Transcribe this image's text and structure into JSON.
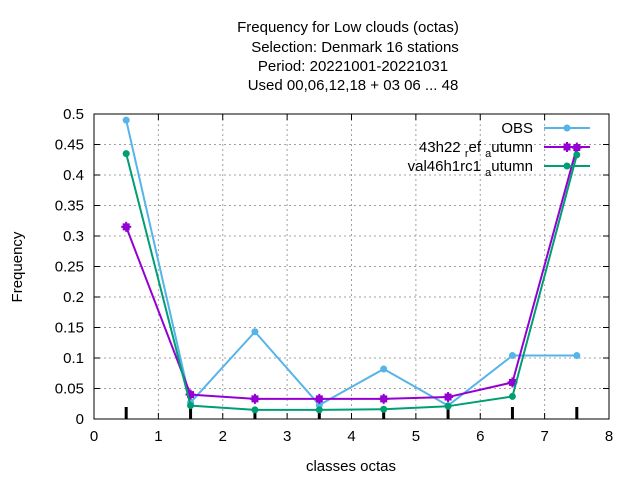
{
  "chart_data": {
    "type": "line",
    "title_lines": [
      "Frequency  for Low clouds (octas)",
      "Selection: Denmark      16 stations",
      "Period: 20221001-20221031",
      "Used  00,06,12,18  + 03 06 ... 48"
    ],
    "xlabel": "classes octas",
    "ylabel": "Frequency",
    "xlim": [
      0,
      8
    ],
    "ylim": [
      0,
      0.5
    ],
    "xticks": [
      "0",
      "1",
      "2",
      "3",
      "4",
      "5",
      "6",
      "7",
      "8"
    ],
    "yticks": [
      "0",
      "0.05",
      "0.1",
      "0.15",
      "0.2",
      "0.25",
      "0.3",
      "0.35",
      "0.4",
      "0.45",
      "0.5"
    ],
    "grid": true,
    "legend_position": "top-right",
    "x": [
      0.5,
      1.5,
      2.5,
      3.5,
      4.5,
      5.5,
      6.5,
      7.5
    ],
    "series": [
      {
        "name": "OBS",
        "legend_parts": [
          {
            "text": "OBS",
            "sub": false
          }
        ],
        "color": "#56b4e9",
        "marker": "circle",
        "values": [
          0.49,
          0.027,
          0.143,
          0.023,
          0.082,
          0.022,
          0.104,
          0.104
        ]
      },
      {
        "name": "43h22_ref_autumn",
        "legend_parts": [
          {
            "text": "43h22 ",
            "sub": false
          },
          {
            "text": "r",
            "sub": true
          },
          {
            "text": "ef ",
            "sub": false
          },
          {
            "text": "a",
            "sub": true
          },
          {
            "text": "utumn",
            "sub": false
          }
        ],
        "color": "#9400d3",
        "marker": "square",
        "values": [
          0.315,
          0.04,
          0.033,
          0.033,
          0.033,
          0.036,
          0.06,
          0.445
        ]
      },
      {
        "name": "val46h1rc1_autumn",
        "legend_parts": [
          {
            "text": "val46h1rc1 ",
            "sub": false
          },
          {
            "text": "a",
            "sub": true
          },
          {
            "text": "utumn",
            "sub": false
          }
        ],
        "color": "#009e73",
        "marker": "circle",
        "values": [
          0.435,
          0.022,
          0.015,
          0.015,
          0.016,
          0.021,
          0.037,
          0.433
        ]
      }
    ]
  }
}
